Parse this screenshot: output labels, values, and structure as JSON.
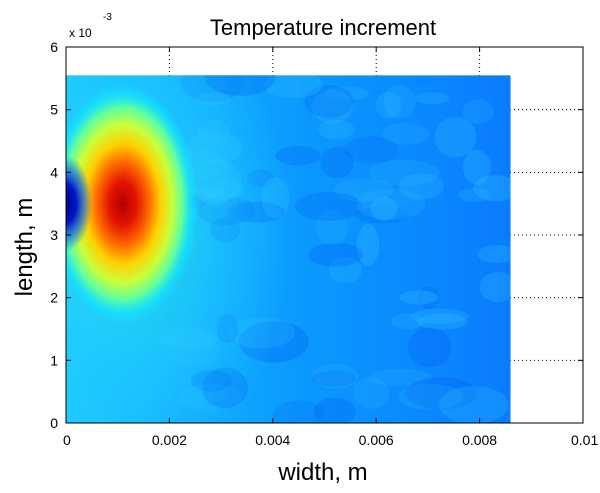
{
  "chart_data": {
    "type": "heatmap",
    "title": "Temperature increment",
    "xlabel": "width, m",
    "ylabel": "length, m",
    "xlim": [
      0,
      0.01
    ],
    "ylim": [
      0,
      6
    ],
    "y_multiplier": "x 10",
    "y_multiplier_exponent": "-3",
    "x_ticks": [
      "0",
      "0.002",
      "0.004",
      "0.006",
      "0.008",
      "0.01"
    ],
    "y_ticks": [
      "0",
      "1",
      "2",
      "3",
      "4",
      "5",
      "6"
    ],
    "grid": true,
    "colormap": "jet",
    "data_extent": {
      "x": [
        0,
        0.0086
      ],
      "y": [
        0,
        5.55
      ]
    },
    "hotspot": {
      "x": 0.0011,
      "y": 3.5
    },
    "coldspot": {
      "x": 0.0,
      "y": 3.5
    }
  }
}
